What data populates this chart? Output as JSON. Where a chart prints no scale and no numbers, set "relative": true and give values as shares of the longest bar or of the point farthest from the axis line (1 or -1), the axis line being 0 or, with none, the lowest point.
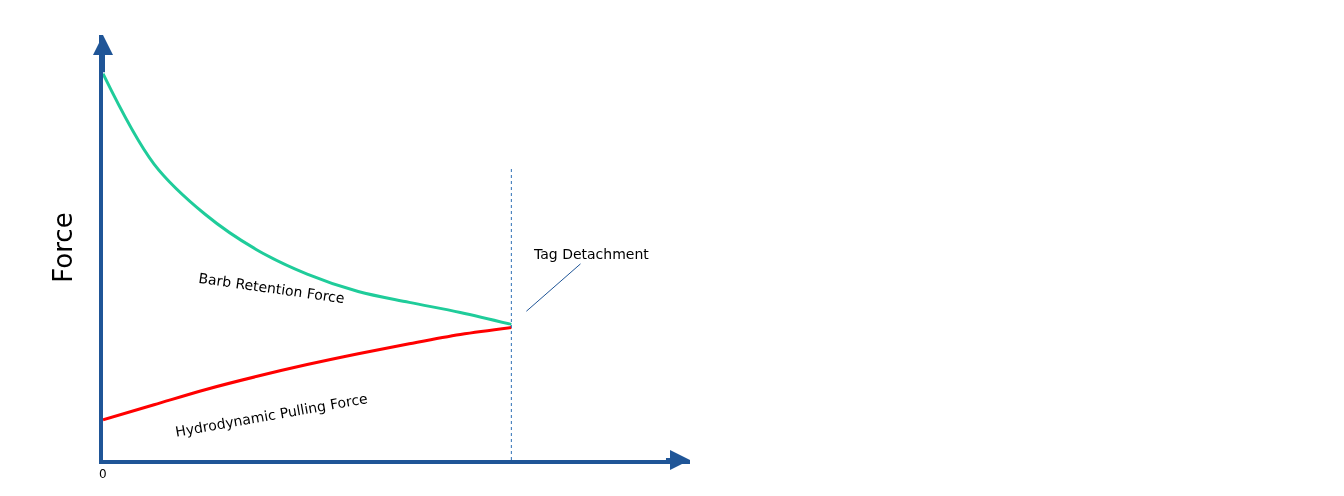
{
  "chart_data": {
    "type": "line",
    "relative": true,
    "ylabel": "Force",
    "categories": [
      null,
      null,
      null,
      null,
      null,
      null,
      null,
      null,
      null
    ],
    "series": [
      {
        "name": "Barb Retention Force",
        "color": "#1fcc9a",
        "values": [
          1.0,
          0.766,
          0.636,
          0.545,
          0.481,
          0.436,
          0.408,
          0.382,
          0.351
        ]
      },
      {
        "name": "Hydrodynamic Pulling Force",
        "color": "#ff0000",
        "values": [
          0.104,
          0.143,
          0.182,
          0.216,
          0.247,
          0.275,
          0.301,
          0.325,
          0.343
        ]
      }
    ],
    "annotations": [
      "0",
      "Tag Detachment"
    ],
    "legend": false,
    "marker": "none",
    "line_style": "solid"
  }
}
